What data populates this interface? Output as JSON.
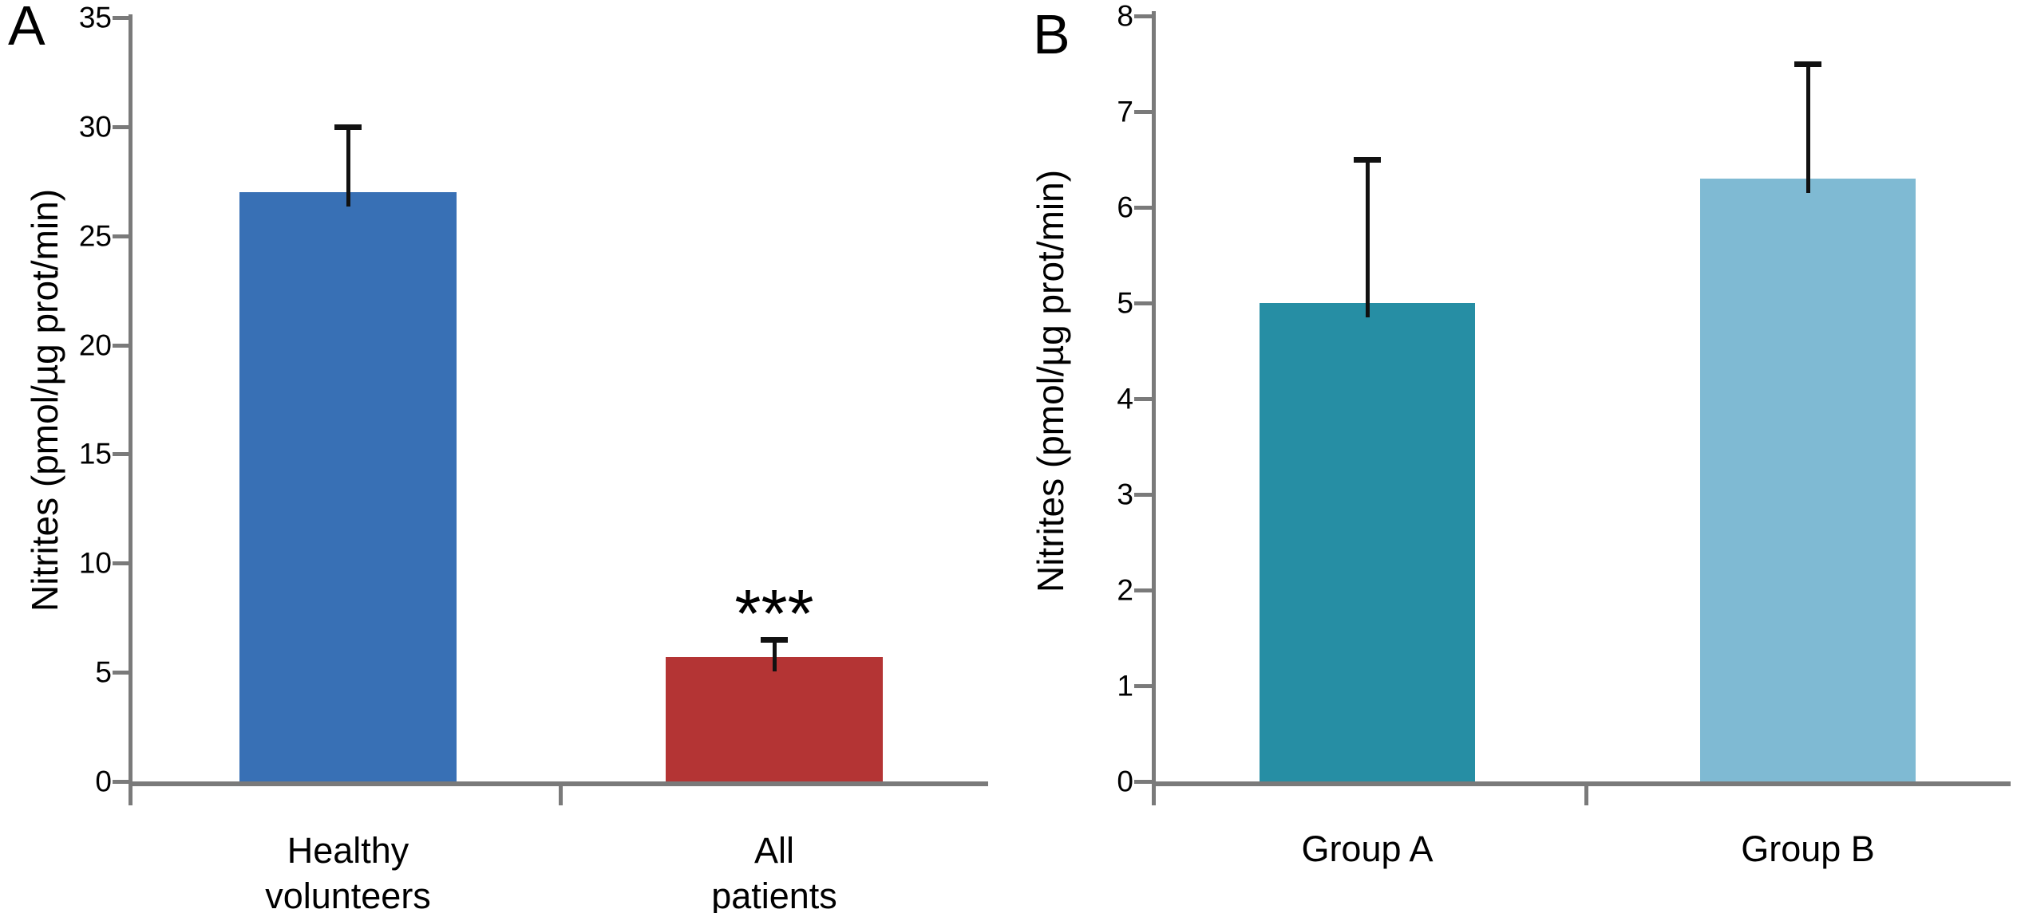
{
  "figure_type": "two-panel bar chart, scientific figure",
  "chart_data": [
    {
      "type": "bar",
      "panel_label": "A",
      "title": "",
      "xlabel": "",
      "ylabel": "Nitrites (pmol/µg prot/min)",
      "ylim": [
        0,
        35
      ],
      "ytick_step": 5,
      "ytick_labels": [
        "0",
        "5",
        "10",
        "15",
        "20",
        "25",
        "30",
        "35"
      ],
      "categories": [
        "Healthy volunteers",
        "All patients"
      ],
      "category_lines": [
        [
          "Healthy",
          "volunteers"
        ],
        [
          "All",
          "patients"
        ]
      ],
      "values": [
        27,
        5.7
      ],
      "errors_plus": [
        3,
        0.8
      ],
      "bar_colors": [
        "#3870B5",
        "#B43434"
      ],
      "error_bar_color": "#111111",
      "axis_color": "#7a7a7a",
      "annotations": [
        {
          "text": "***",
          "category_index": 1,
          "y": 7.6
        }
      ],
      "grid": false,
      "legend": null
    },
    {
      "type": "bar",
      "panel_label": "B",
      "title": "",
      "xlabel": "",
      "ylabel": "Nitrites (pmol/µg prot/min)",
      "ylim": [
        0,
        8
      ],
      "ytick_step": 1,
      "ytick_labels": [
        "0",
        "1",
        "2",
        "3",
        "4",
        "5",
        "6",
        "7",
        "8"
      ],
      "categories": [
        "Group A",
        "Group B"
      ],
      "category_lines": [
        [
          "Group A"
        ],
        [
          "Group B"
        ]
      ],
      "values": [
        5.0,
        6.3
      ],
      "errors_plus": [
        1.5,
        1.2
      ],
      "bar_colors": [
        "#268EA4",
        "#7FBAD3"
      ],
      "error_bar_color": "#111111",
      "axis_color": "#7a7a7a",
      "annotations": [],
      "grid": false,
      "legend": null
    }
  ]
}
